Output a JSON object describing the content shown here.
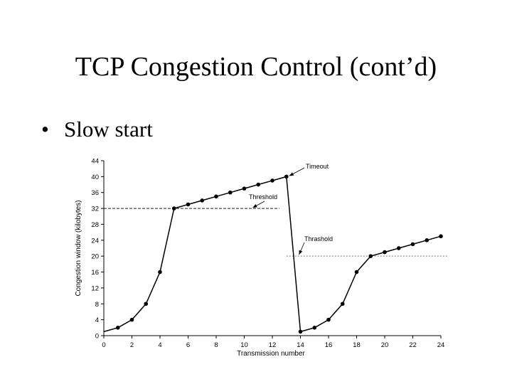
{
  "slide": {
    "title": "TCP Congestion Control (cont’d)",
    "bullet_symbol": "•",
    "bullet_text": "Slow start"
  },
  "chart_data": {
    "type": "line",
    "title": "",
    "xlabel": "Transmission number",
    "ylabel": "Congestion window (kilobytes)",
    "xlim": [
      0,
      24
    ],
    "ylim": [
      0,
      44
    ],
    "x_ticks": [
      0,
      2,
      4,
      6,
      8,
      10,
      12,
      14,
      16,
      18,
      20,
      22,
      24
    ],
    "y_ticks": [
      0,
      4,
      8,
      12,
      16,
      20,
      24,
      28,
      32,
      36,
      40,
      44
    ],
    "grid": false,
    "series": [
      {
        "name": "Congestion window",
        "points": [
          [
            0,
            1
          ],
          [
            1,
            2
          ],
          [
            2,
            4
          ],
          [
            3,
            8
          ],
          [
            4,
            16
          ],
          [
            5,
            32
          ],
          [
            6,
            33
          ],
          [
            7,
            34
          ],
          [
            8,
            35
          ],
          [
            9,
            36
          ],
          [
            10,
            37
          ],
          [
            11,
            38
          ],
          [
            12,
            39
          ],
          [
            13,
            40
          ],
          [
            14,
            1
          ],
          [
            15,
            2
          ],
          [
            16,
            4
          ],
          [
            17,
            8
          ],
          [
            18,
            16
          ],
          [
            19,
            20
          ],
          [
            20,
            21
          ],
          [
            21,
            22
          ],
          [
            22,
            23
          ],
          [
            23,
            24
          ],
          [
            24,
            25
          ]
        ],
        "markers": [
          [
            1,
            2
          ],
          [
            2,
            4
          ],
          [
            3,
            8
          ],
          [
            4,
            16
          ],
          [
            5,
            32
          ],
          [
            6,
            33
          ],
          [
            7,
            34
          ],
          [
            8,
            35
          ],
          [
            9,
            36
          ],
          [
            10,
            37
          ],
          [
            11,
            38
          ],
          [
            12,
            39
          ],
          [
            13,
            40
          ],
          [
            14,
            1
          ],
          [
            15,
            2
          ],
          [
            16,
            4
          ],
          [
            17,
            8
          ],
          [
            18,
            16
          ],
          [
            19,
            20
          ],
          [
            20,
            21
          ],
          [
            21,
            22
          ],
          [
            22,
            23
          ],
          [
            23,
            24
          ],
          [
            24,
            25
          ]
        ]
      }
    ],
    "threshold_lines": [
      {
        "name": "Threshold",
        "y": 32,
        "x_start": 0,
        "x_end": 12.5
      },
      {
        "name": "Thrashold",
        "y": 20,
        "x_start": 13,
        "x_end": 24.5
      }
    ],
    "annotations": [
      {
        "text": "Timeout",
        "target": [
          13,
          40
        ]
      },
      {
        "text": "Threshold",
        "target": [
          10.5,
          32
        ]
      },
      {
        "text": "Thrashold",
        "target": [
          13.8,
          20
        ]
      }
    ]
  }
}
